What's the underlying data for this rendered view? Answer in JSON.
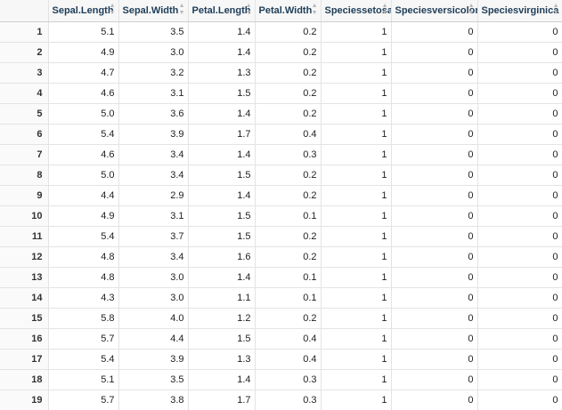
{
  "columns": [
    "Sepal.Length",
    "Sepal.Width",
    "Petal.Length",
    "Petal.Width",
    "Speciessetosa",
    "Speciesversicolor",
    "Speciesvirginica"
  ],
  "sort_icon": "sort-arrows-icon",
  "rows": [
    {
      "rownum": "1",
      "cells": [
        "5.1",
        "3.5",
        "1.4",
        "0.2",
        "1",
        "0",
        "0"
      ]
    },
    {
      "rownum": "2",
      "cells": [
        "4.9",
        "3.0",
        "1.4",
        "0.2",
        "1",
        "0",
        "0"
      ]
    },
    {
      "rownum": "3",
      "cells": [
        "4.7",
        "3.2",
        "1.3",
        "0.2",
        "1",
        "0",
        "0"
      ]
    },
    {
      "rownum": "4",
      "cells": [
        "4.6",
        "3.1",
        "1.5",
        "0.2",
        "1",
        "0",
        "0"
      ]
    },
    {
      "rownum": "5",
      "cells": [
        "5.0",
        "3.6",
        "1.4",
        "0.2",
        "1",
        "0",
        "0"
      ]
    },
    {
      "rownum": "6",
      "cells": [
        "5.4",
        "3.9",
        "1.7",
        "0.4",
        "1",
        "0",
        "0"
      ]
    },
    {
      "rownum": "7",
      "cells": [
        "4.6",
        "3.4",
        "1.4",
        "0.3",
        "1",
        "0",
        "0"
      ]
    },
    {
      "rownum": "8",
      "cells": [
        "5.0",
        "3.4",
        "1.5",
        "0.2",
        "1",
        "0",
        "0"
      ]
    },
    {
      "rownum": "9",
      "cells": [
        "4.4",
        "2.9",
        "1.4",
        "0.2",
        "1",
        "0",
        "0"
      ]
    },
    {
      "rownum": "10",
      "cells": [
        "4.9",
        "3.1",
        "1.5",
        "0.1",
        "1",
        "0",
        "0"
      ]
    },
    {
      "rownum": "11",
      "cells": [
        "5.4",
        "3.7",
        "1.5",
        "0.2",
        "1",
        "0",
        "0"
      ]
    },
    {
      "rownum": "12",
      "cells": [
        "4.8",
        "3.4",
        "1.6",
        "0.2",
        "1",
        "0",
        "0"
      ]
    },
    {
      "rownum": "13",
      "cells": [
        "4.8",
        "3.0",
        "1.4",
        "0.1",
        "1",
        "0",
        "0"
      ]
    },
    {
      "rownum": "14",
      "cells": [
        "4.3",
        "3.0",
        "1.1",
        "0.1",
        "1",
        "0",
        "0"
      ]
    },
    {
      "rownum": "15",
      "cells": [
        "5.8",
        "4.0",
        "1.2",
        "0.2",
        "1",
        "0",
        "0"
      ]
    },
    {
      "rownum": "16",
      "cells": [
        "5.7",
        "4.4",
        "1.5",
        "0.4",
        "1",
        "0",
        "0"
      ]
    },
    {
      "rownum": "17",
      "cells": [
        "5.4",
        "3.9",
        "1.3",
        "0.4",
        "1",
        "0",
        "0"
      ]
    },
    {
      "rownum": "18",
      "cells": [
        "5.1",
        "3.5",
        "1.4",
        "0.3",
        "1",
        "0",
        "0"
      ]
    },
    {
      "rownum": "19",
      "cells": [
        "5.7",
        "3.8",
        "1.7",
        "0.3",
        "1",
        "0",
        "0"
      ]
    }
  ]
}
